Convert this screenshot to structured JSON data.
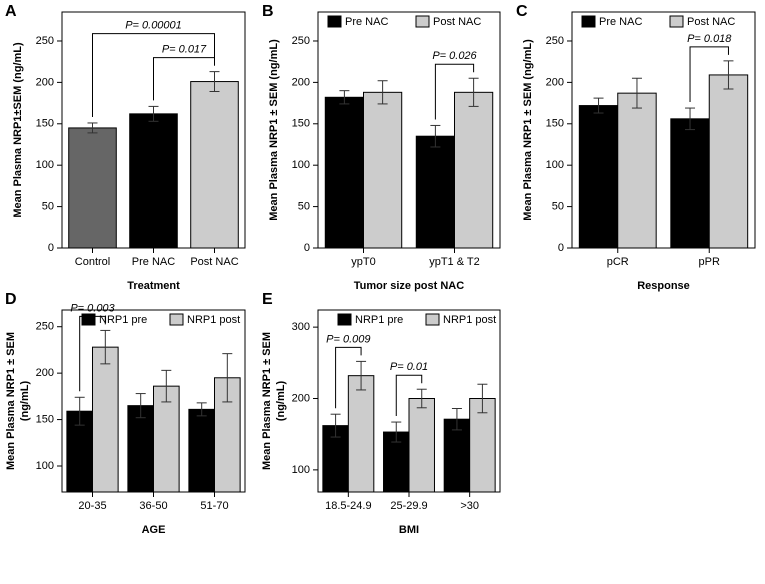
{
  "chart_data": [
    {
      "type": "bar",
      "panel": "A",
      "ylabel": [
        "Mean Plasma NRP1±SEM (ng/mL)"
      ],
      "xlabel": "Treatment",
      "categories": [
        "Control",
        "Pre NAC",
        "Post NAC"
      ],
      "values": [
        145,
        162,
        201
      ],
      "errors": [
        6,
        9,
        12
      ],
      "colors": [
        "#666666",
        "#000000",
        "#cccccc"
      ],
      "ylim": [
        0,
        285
      ],
      "yticks": [
        0,
        50,
        100,
        150,
        200,
        250
      ],
      "brackets": [
        {
          "text": "P= 0.00001",
          "from": "Control",
          "to": "Post NAC"
        },
        {
          "text": "P= 0.017",
          "from": "Pre NAC",
          "to": "Post NAC"
        }
      ]
    },
    {
      "type": "grouped_bar",
      "panel": "B",
      "ylabel": [
        "Mean Plasma NRP1 ± SEM (ng/mL)"
      ],
      "xlabel": "Tumor size post NAC",
      "categories": [
        "ypT0",
        "ypT1 & T2"
      ],
      "series": [
        {
          "name": "Pre NAC",
          "color": "#000000",
          "values": [
            182,
            135
          ],
          "errors": [
            8,
            13
          ]
        },
        {
          "name": "Post NAC",
          "color": "#cccccc",
          "values": [
            188,
            188
          ],
          "errors": [
            14,
            17
          ]
        }
      ],
      "ylim": [
        0,
        285
      ],
      "yticks": [
        0,
        50,
        100,
        150,
        200,
        250
      ],
      "brackets": [
        {
          "text": "P= 0.026",
          "category": "ypT1 & T2"
        }
      ]
    },
    {
      "type": "grouped_bar",
      "panel": "C",
      "ylabel": [
        "Mean Plasma NRP1 ± SEM (ng/mL)"
      ],
      "xlabel": "Response",
      "categories": [
        "pCR",
        "pPR"
      ],
      "series": [
        {
          "name": "Pre NAC",
          "color": "#000000",
          "values": [
            172,
            156
          ],
          "errors": [
            9,
            13
          ]
        },
        {
          "name": "Post NAC",
          "color": "#cccccc",
          "values": [
            187,
            209
          ],
          "errors": [
            18,
            17
          ]
        }
      ],
      "ylim": [
        0,
        285
      ],
      "yticks": [
        0,
        50,
        100,
        150,
        200,
        250
      ],
      "brackets": [
        {
          "text": "P= 0.018",
          "category": "pPR"
        }
      ]
    },
    {
      "type": "grouped_bar",
      "panel": "D",
      "ylabel": [
        "Mean Plasma NRP1 ± SEM",
        "(ng/mL)"
      ],
      "xlabel": "AGE",
      "categories": [
        "20-35",
        "36-50",
        "51-70"
      ],
      "series": [
        {
          "name": "NRP1 pre",
          "color": "#000000",
          "values": [
            159,
            165,
            161
          ],
          "errors": [
            15,
            13,
            7
          ]
        },
        {
          "name": "NRP1 post",
          "color": "#cccccc",
          "values": [
            228,
            186,
            195
          ],
          "errors": [
            18,
            17,
            26
          ]
        }
      ],
      "ylim": [
        72,
        268
      ],
      "yticks": [
        100,
        150,
        200,
        250
      ],
      "brackets": [
        {
          "text": "P= 0.003",
          "category": "20-35"
        }
      ]
    },
    {
      "type": "grouped_bar",
      "panel": "E",
      "ylabel": [
        "Mean Plasma NRP1 ± SEM",
        "(ng/mL)"
      ],
      "xlabel": "BMI",
      "categories": [
        "18.5-24.9",
        "25-29.9",
        ">30"
      ],
      "series": [
        {
          "name": "NRP1 pre",
          "color": "#000000",
          "values": [
            162,
            153,
            171
          ],
          "errors": [
            16,
            14,
            15
          ]
        },
        {
          "name": "NRP1 post",
          "color": "#cccccc",
          "values": [
            232,
            200,
            200
          ],
          "errors": [
            20,
            13,
            20
          ]
        }
      ],
      "ylim": [
        69,
        324
      ],
      "yticks": [
        100,
        200,
        300
      ],
      "brackets": [
        {
          "text": "P= 0.009",
          "category": "18.5-24.9"
        },
        {
          "text": "P= 0.01",
          "category": "25-29.9"
        }
      ]
    }
  ]
}
